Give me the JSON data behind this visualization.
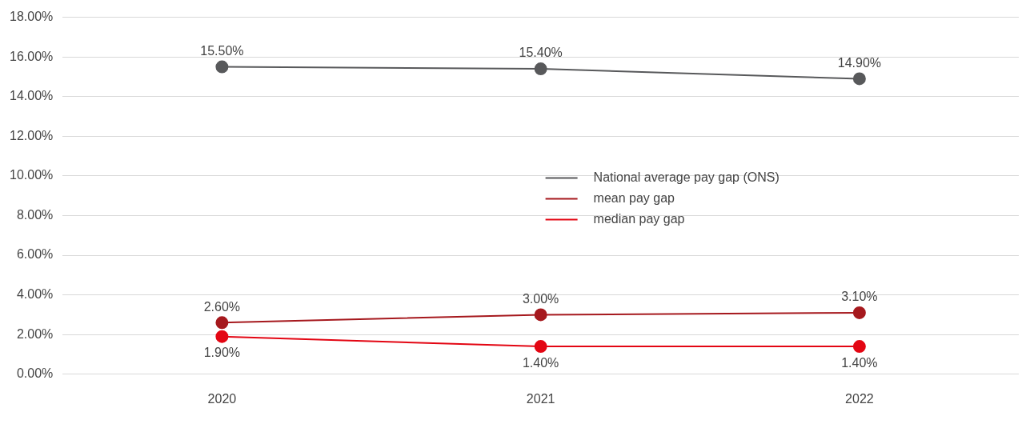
{
  "chart_data": {
    "type": "line",
    "categories": [
      "2020",
      "2021",
      "2022"
    ],
    "series": [
      {
        "name": "National average pay gap (ONS)",
        "color": "#58595b",
        "values": [
          15.5,
          15.4,
          14.9
        ],
        "value_labels": [
          "15.50%",
          "15.40%",
          "14.90%"
        ]
      },
      {
        "name": "mean pay gap",
        "color": "#a6191e",
        "values": [
          2.6,
          3.0,
          3.1
        ],
        "value_labels": [
          "2.60%",
          "3.00%",
          "3.10%"
        ]
      },
      {
        "name": "median pay gap",
        "color": "#e30613",
        "values": [
          1.9,
          1.4,
          1.4
        ],
        "value_labels": [
          "1.90%",
          "1.40%",
          "1.40%"
        ]
      }
    ],
    "ylim": [
      0,
      18
    ],
    "yticks": [
      {
        "value": 0,
        "label": "0.00%"
      },
      {
        "value": 2,
        "label": "2.00%"
      },
      {
        "value": 4,
        "label": "4.00%"
      },
      {
        "value": 6,
        "label": "6.00%"
      },
      {
        "value": 8,
        "label": "8.00%"
      },
      {
        "value": 10,
        "label": "10.00%"
      },
      {
        "value": 12,
        "label": "12.00%"
      },
      {
        "value": 14,
        "label": "14.00%"
      },
      {
        "value": 16,
        "label": "16.00%"
      },
      {
        "value": 18,
        "label": "18.00%"
      }
    ],
    "grid": "y",
    "legend": "right",
    "marker": "circle",
    "line_style": "solid"
  }
}
